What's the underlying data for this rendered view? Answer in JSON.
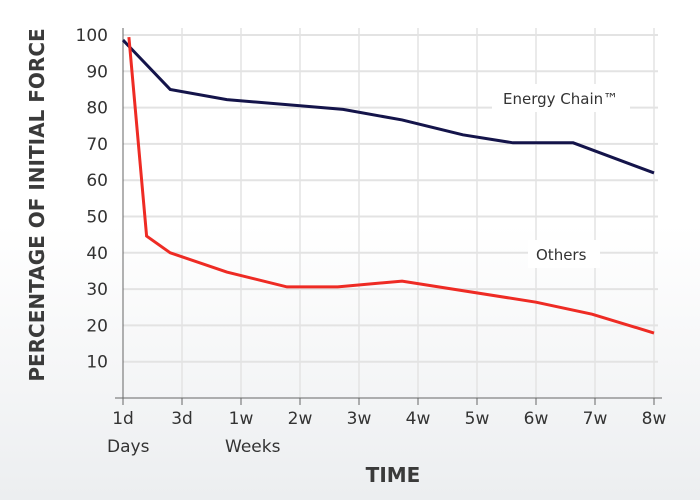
{
  "chart_data": {
    "type": "line",
    "title": "",
    "xlabel": "TIME",
    "ylabel": "PERCENTAGE OF INITIAL FORCE",
    "x_tick_labels": [
      "1d",
      "3d",
      "1w",
      "2w",
      "3w",
      "4w",
      "5w",
      "6w",
      "7w",
      "8w"
    ],
    "x_group_labels": [
      {
        "text": "Days",
        "at": "1d"
      },
      {
        "text": "Weeks",
        "at": "1w"
      }
    ],
    "y_ticks": [
      10,
      20,
      30,
      40,
      50,
      60,
      70,
      80,
      90,
      100
    ],
    "ylim": [
      0,
      100
    ],
    "grid": true,
    "x_units": "tick index (1d=0 ... 8w=9)",
    "series": [
      {
        "name": "Energy Chain™",
        "color": "#14144a",
        "points": [
          [
            0,
            98.6
          ],
          [
            0.8,
            85
          ],
          [
            1.76,
            82.2
          ],
          [
            3.73,
            79.5
          ],
          [
            4.73,
            76.6
          ],
          [
            5.76,
            72.5
          ],
          [
            6.61,
            70.3
          ],
          [
            7.63,
            70.3
          ],
          [
            9,
            62
          ]
        ]
      },
      {
        "name": "Others",
        "color": "#ee2b24",
        "points": [
          [
            0.1,
            99.4
          ],
          [
            0.4,
            44.6
          ],
          [
            0.8,
            40
          ],
          [
            1.76,
            34.7
          ],
          [
            2.78,
            30.6
          ],
          [
            3.64,
            30.6
          ],
          [
            4.73,
            32.2
          ],
          [
            7,
            26.4
          ],
          [
            7.95,
            23.1
          ],
          [
            9,
            17.9
          ]
        ]
      }
    ]
  }
}
